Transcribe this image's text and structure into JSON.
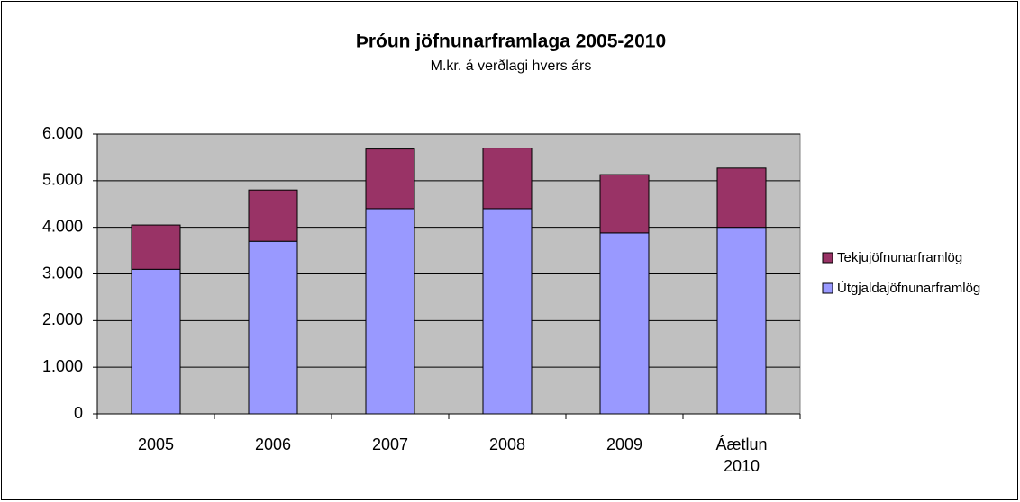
{
  "chart_data": {
    "type": "bar",
    "stacked": true,
    "title": "Þróun jöfnunarframlaga 2005-2010",
    "subtitle": "M.kr. á verðlagi hvers árs",
    "categories": [
      "2005",
      "2006",
      "2007",
      "2008",
      "2009",
      "Áætlun 2010"
    ],
    "series": [
      {
        "name": "Útgjaldajöfnunarframlög",
        "color": "#9999ff",
        "values": [
          3100,
          3700,
          4400,
          4400,
          3880,
          4000
        ]
      },
      {
        "name": "Tekjujöfnunarframlög",
        "color": "#993366",
        "values": [
          950,
          1100,
          1280,
          1300,
          1250,
          1270
        ]
      }
    ],
    "ylim": [
      0,
      6000
    ],
    "yticks": [
      0,
      {
        "value": 1000,
        "label": "1.000"
      },
      {
        "value": 2000,
        "label": "2.000"
      },
      {
        "value": 3000,
        "label": "3.000"
      },
      {
        "value": 4000,
        "label": "4.000"
      },
      {
        "value": 5000,
        "label": "5.000"
      },
      {
        "value": 6000,
        "label": "6.000"
      }
    ],
    "grid": true,
    "legend": "right"
  }
}
